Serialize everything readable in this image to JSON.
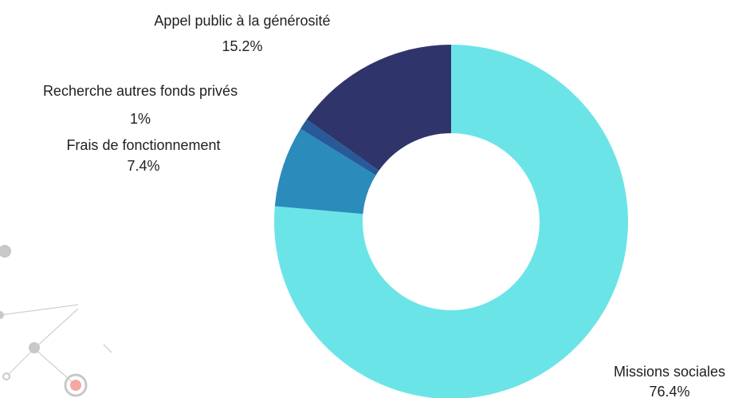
{
  "chart_data": {
    "type": "pie",
    "style": "donut",
    "start_angle_deg": 0,
    "direction": "clockwise",
    "slices": [
      {
        "label": "Missions sociales",
        "value": 76.4,
        "display": "76.4%",
        "color": "#6be4e8"
      },
      {
        "label": "Frais de fonctionnement",
        "value": 7.4,
        "display": "7.4%",
        "color": "#2b8bbb"
      },
      {
        "label": "Recherche autres fonds privés",
        "value": 1,
        "display": "1%",
        "color": "#285a99"
      },
      {
        "label": "Appel public à la générosité",
        "value": 15.2,
        "display": "15.2%",
        "color": "#2f356b"
      }
    ]
  },
  "decoration": {
    "network_node_color": "#c8c8c8",
    "network_line_color": "#d0d0d0",
    "accent_node_color": "#f4a9a0"
  }
}
